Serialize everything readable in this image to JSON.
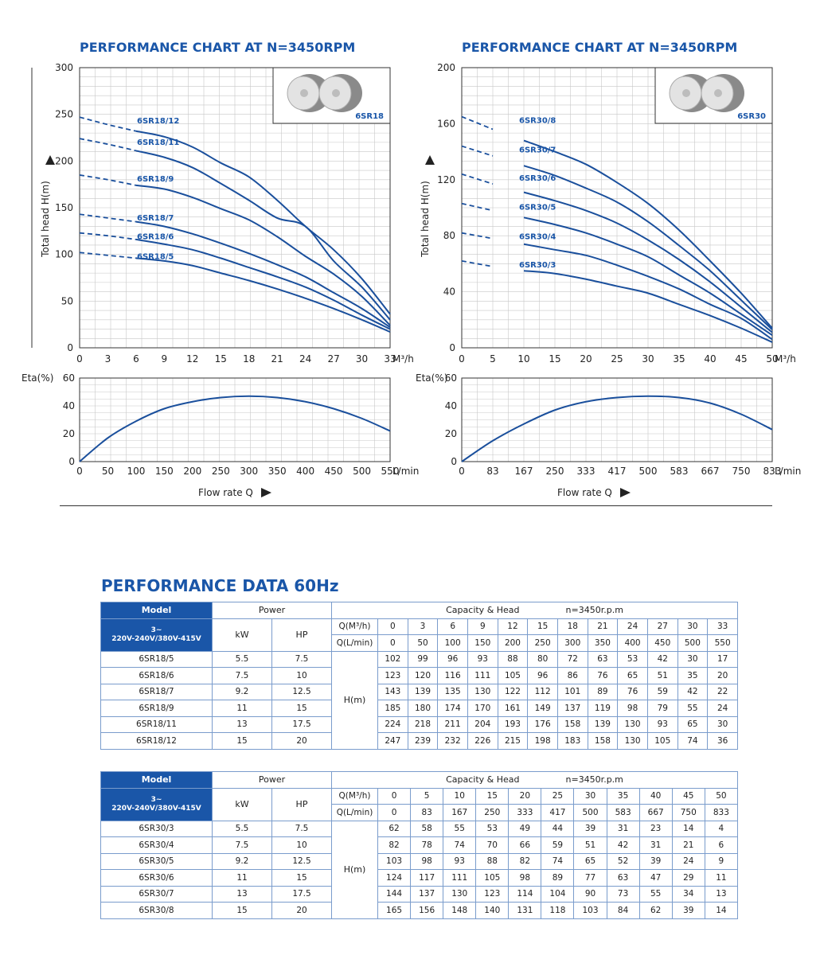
{
  "chart_data": [
    {
      "type": "line",
      "title": "PERFORMANCE CHART AT N=3450RPM",
      "ylabel": "Total head H(m)",
      "xlabel": "M³/h",
      "xlim": [
        0,
        33
      ],
      "ylim": [
        0,
        300
      ],
      "x_ticks": [
        "0",
        "3",
        "6",
        "9",
        "12",
        "15",
        "18",
        "21",
        "24",
        "27",
        "30",
        "33"
      ],
      "y_ticks": [
        "0",
        "50",
        "100",
        "150",
        "200",
        "250",
        "300"
      ],
      "inset_label": "6SR18",
      "series": [
        {
          "name": "6SR18/12",
          "x": [
            0,
            3,
            6,
            9,
            12,
            15,
            18,
            21,
            24,
            27,
            30,
            33
          ],
          "y": [
            247,
            239,
            232,
            226,
            215,
            198,
            183,
            158,
            130,
            105,
            74,
            36
          ]
        },
        {
          "name": "6SR18/11",
          "x": [
            0,
            3,
            6,
            9,
            12,
            15,
            18,
            21,
            24,
            27,
            30,
            33
          ],
          "y": [
            224,
            218,
            211,
            204,
            193,
            176,
            158,
            139,
            130,
            93,
            65,
            30
          ]
        },
        {
          "name": "6SR18/9",
          "x": [
            0,
            3,
            6,
            9,
            12,
            15,
            18,
            21,
            24,
            27,
            30,
            33
          ],
          "y": [
            185,
            180,
            174,
            170,
            161,
            149,
            137,
            119,
            98,
            79,
            55,
            24
          ]
        },
        {
          "name": "6SR18/7",
          "x": [
            0,
            3,
            6,
            9,
            12,
            15,
            18,
            21,
            24,
            27,
            30,
            33
          ],
          "y": [
            143,
            139,
            135,
            130,
            122,
            112,
            101,
            89,
            76,
            59,
            42,
            22
          ]
        },
        {
          "name": "6SR18/6",
          "x": [
            0,
            3,
            6,
            9,
            12,
            15,
            18,
            21,
            24,
            27,
            30,
            33
          ],
          "y": [
            123,
            120,
            116,
            111,
            105,
            96,
            86,
            76,
            65,
            51,
            35,
            20
          ]
        },
        {
          "name": "6SR18/5",
          "x": [
            0,
            3,
            6,
            9,
            12,
            15,
            18,
            21,
            24,
            27,
            30,
            33
          ],
          "y": [
            102,
            99,
            96,
            93,
            88,
            80,
            72,
            63,
            53,
            42,
            30,
            17
          ]
        }
      ],
      "efficiency": {
        "ylabel": "Eta(%)",
        "ylim": [
          0,
          60
        ],
        "y_ticks": [
          "0",
          "20",
          "40",
          "60"
        ],
        "x_ticks": [
          "0",
          "50",
          "100",
          "150",
          "200",
          "250",
          "300",
          "350",
          "400",
          "450",
          "500",
          "550"
        ],
        "xlabel": "L/min",
        "x": [
          0,
          50,
          100,
          150,
          200,
          250,
          300,
          350,
          400,
          450,
          500,
          550
        ],
        "y": [
          0,
          17,
          29,
          38,
          43,
          46,
          47,
          46,
          43,
          38,
          31,
          22
        ]
      },
      "flow_label": "Flow rate Q"
    },
    {
      "type": "line",
      "title": "PERFORMANCE CHART AT N=3450RPM",
      "ylabel": "Total head H(m)",
      "xlabel": "M³/h",
      "xlim": [
        0,
        50
      ],
      "ylim": [
        0,
        200
      ],
      "x_ticks": [
        "0",
        "5",
        "10",
        "15",
        "20",
        "25",
        "30",
        "35",
        "40",
        "45",
        "50"
      ],
      "y_ticks": [
        "0",
        "40",
        "80",
        "120",
        "160",
        "200"
      ],
      "inset_label": "6SR30",
      "series": [
        {
          "name": "6SR30/8",
          "x": [
            0,
            5,
            10,
            15,
            20,
            25,
            30,
            35,
            40,
            45,
            50
          ],
          "y": [
            165,
            156,
            148,
            140,
            131,
            118,
            103,
            84,
            62,
            39,
            14
          ]
        },
        {
          "name": "6SR30/7",
          "x": [
            0,
            5,
            10,
            15,
            20,
            25,
            30,
            35,
            40,
            45,
            50
          ],
          "y": [
            144,
            137,
            130,
            123,
            114,
            104,
            90,
            73,
            55,
            34,
            13
          ]
        },
        {
          "name": "6SR30/6",
          "x": [
            0,
            5,
            10,
            15,
            20,
            25,
            30,
            35,
            40,
            45,
            50
          ],
          "y": [
            124,
            117,
            111,
            105,
            98,
            89,
            77,
            63,
            47,
            29,
            11
          ]
        },
        {
          "name": "6SR30/5",
          "x": [
            0,
            5,
            10,
            15,
            20,
            25,
            30,
            35,
            40,
            45,
            50
          ],
          "y": [
            103,
            98,
            93,
            88,
            82,
            74,
            65,
            52,
            39,
            24,
            9
          ]
        },
        {
          "name": "6SR30/4",
          "x": [
            0,
            5,
            10,
            15,
            20,
            25,
            30,
            35,
            40,
            45,
            50
          ],
          "y": [
            82,
            78,
            74,
            70,
            66,
            59,
            51,
            42,
            31,
            21,
            6
          ]
        },
        {
          "name": "6SR30/3",
          "x": [
            0,
            5,
            10,
            15,
            20,
            25,
            30,
            35,
            40,
            45,
            50
          ],
          "y": [
            62,
            58,
            55,
            53,
            49,
            44,
            39,
            31,
            23,
            14,
            4
          ]
        }
      ],
      "efficiency": {
        "ylabel": "Eta(%)",
        "ylim": [
          0,
          60
        ],
        "y_ticks": [
          "0",
          "20",
          "40",
          "60"
        ],
        "x_ticks": [
          "0",
          "83",
          "167",
          "250",
          "333",
          "417",
          "500",
          "583",
          "667",
          "750",
          "833"
        ],
        "xlabel": "L/min",
        "x": [
          0,
          83,
          167,
          250,
          333,
          417,
          500,
          583,
          667,
          750,
          833
        ],
        "y": [
          0,
          15,
          27,
          37,
          43,
          46,
          47,
          46,
          42,
          34,
          23
        ]
      },
      "flow_label": "Flow rate Q"
    }
  ],
  "data_title": "PERFORMANCE DATA 60Hz",
  "tables": [
    {
      "model_label": "Model",
      "power_label": "Power",
      "capacity_label": "Capacity  &  Head",
      "speed_label": "n=3450r.p.m",
      "voltage_line1": "3~",
      "voltage_line2": "220V-240V/380V-415V",
      "kw_label": "kW",
      "hp_label": "HP",
      "q_m3h_label": "Q(M³/h)",
      "q_lmin_label": "Q(L/min)",
      "h_label": "H(m)",
      "q_m3h": [
        "0",
        "3",
        "6",
        "9",
        "12",
        "15",
        "18",
        "21",
        "24",
        "27",
        "30",
        "33"
      ],
      "q_lmin": [
        "0",
        "50",
        "100",
        "150",
        "200",
        "250",
        "300",
        "350",
        "400",
        "450",
        "500",
        "550"
      ],
      "rows": [
        {
          "model": "6SR18/5",
          "kw": "5.5",
          "hp": "7.5",
          "h": [
            "102",
            "99",
            "96",
            "93",
            "88",
            "80",
            "72",
            "63",
            "53",
            "42",
            "30",
            "17"
          ]
        },
        {
          "model": "6SR18/6",
          "kw": "7.5",
          "hp": "10",
          "h": [
            "123",
            "120",
            "116",
            "111",
            "105",
            "96",
            "86",
            "76",
            "65",
            "51",
            "35",
            "20"
          ]
        },
        {
          "model": "6SR18/7",
          "kw": "9.2",
          "hp": "12.5",
          "h": [
            "143",
            "139",
            "135",
            "130",
            "122",
            "112",
            "101",
            "89",
            "76",
            "59",
            "42",
            "22"
          ]
        },
        {
          "model": "6SR18/9",
          "kw": "11",
          "hp": "15",
          "h": [
            "185",
            "180",
            "174",
            "170",
            "161",
            "149",
            "137",
            "119",
            "98",
            "79",
            "55",
            "24"
          ]
        },
        {
          "model": "6SR18/11",
          "kw": "13",
          "hp": "17.5",
          "h": [
            "224",
            "218",
            "211",
            "204",
            "193",
            "176",
            "158",
            "139",
            "130",
            "93",
            "65",
            "30"
          ]
        },
        {
          "model": "6SR18/12",
          "kw": "15",
          "hp": "20",
          "h": [
            "247",
            "239",
            "232",
            "226",
            "215",
            "198",
            "183",
            "158",
            "130",
            "105",
            "74",
            "36"
          ]
        }
      ]
    },
    {
      "model_label": "Model",
      "power_label": "Power",
      "capacity_label": "Capacity  &  Head",
      "speed_label": "n=3450r.p.m",
      "voltage_line1": "3~",
      "voltage_line2": "220V-240V/380V-415V",
      "kw_label": "kW",
      "hp_label": "HP",
      "q_m3h_label": "Q(M³/h)",
      "q_lmin_label": "Q(L/min)",
      "h_label": "H(m)",
      "q_m3h": [
        "0",
        "5",
        "10",
        "15",
        "20",
        "25",
        "30",
        "35",
        "40",
        "45",
        "50"
      ],
      "q_lmin": [
        "0",
        "83",
        "167",
        "250",
        "333",
        "417",
        "500",
        "583",
        "667",
        "750",
        "833"
      ],
      "rows": [
        {
          "model": "6SR30/3",
          "kw": "5.5",
          "hp": "7.5",
          "h": [
            "62",
            "58",
            "55",
            "53",
            "49",
            "44",
            "39",
            "31",
            "23",
            "14",
            "4"
          ]
        },
        {
          "model": "6SR30/4",
          "kw": "7.5",
          "hp": "10",
          "h": [
            "82",
            "78",
            "74",
            "70",
            "66",
            "59",
            "51",
            "42",
            "31",
            "21",
            "6"
          ]
        },
        {
          "model": "6SR30/5",
          "kw": "9.2",
          "hp": "12.5",
          "h": [
            "103",
            "98",
            "93",
            "88",
            "82",
            "74",
            "65",
            "52",
            "39",
            "24",
            "9"
          ]
        },
        {
          "model": "6SR30/6",
          "kw": "11",
          "hp": "15",
          "h": [
            "124",
            "117",
            "111",
            "105",
            "98",
            "89",
            "77",
            "63",
            "47",
            "29",
            "11"
          ]
        },
        {
          "model": "6SR30/7",
          "kw": "13",
          "hp": "17.5",
          "h": [
            "144",
            "137",
            "130",
            "123",
            "114",
            "104",
            "90",
            "73",
            "55",
            "34",
            "13"
          ]
        },
        {
          "model": "6SR30/8",
          "kw": "15",
          "hp": "20",
          "h": [
            "165",
            "156",
            "148",
            "140",
            "131",
            "118",
            "103",
            "84",
            "62",
            "39",
            "14"
          ]
        }
      ]
    }
  ],
  "colors": {
    "accent": "#1a56a8",
    "curve": "#1a4f9c",
    "grid": "#c8c8c8"
  }
}
